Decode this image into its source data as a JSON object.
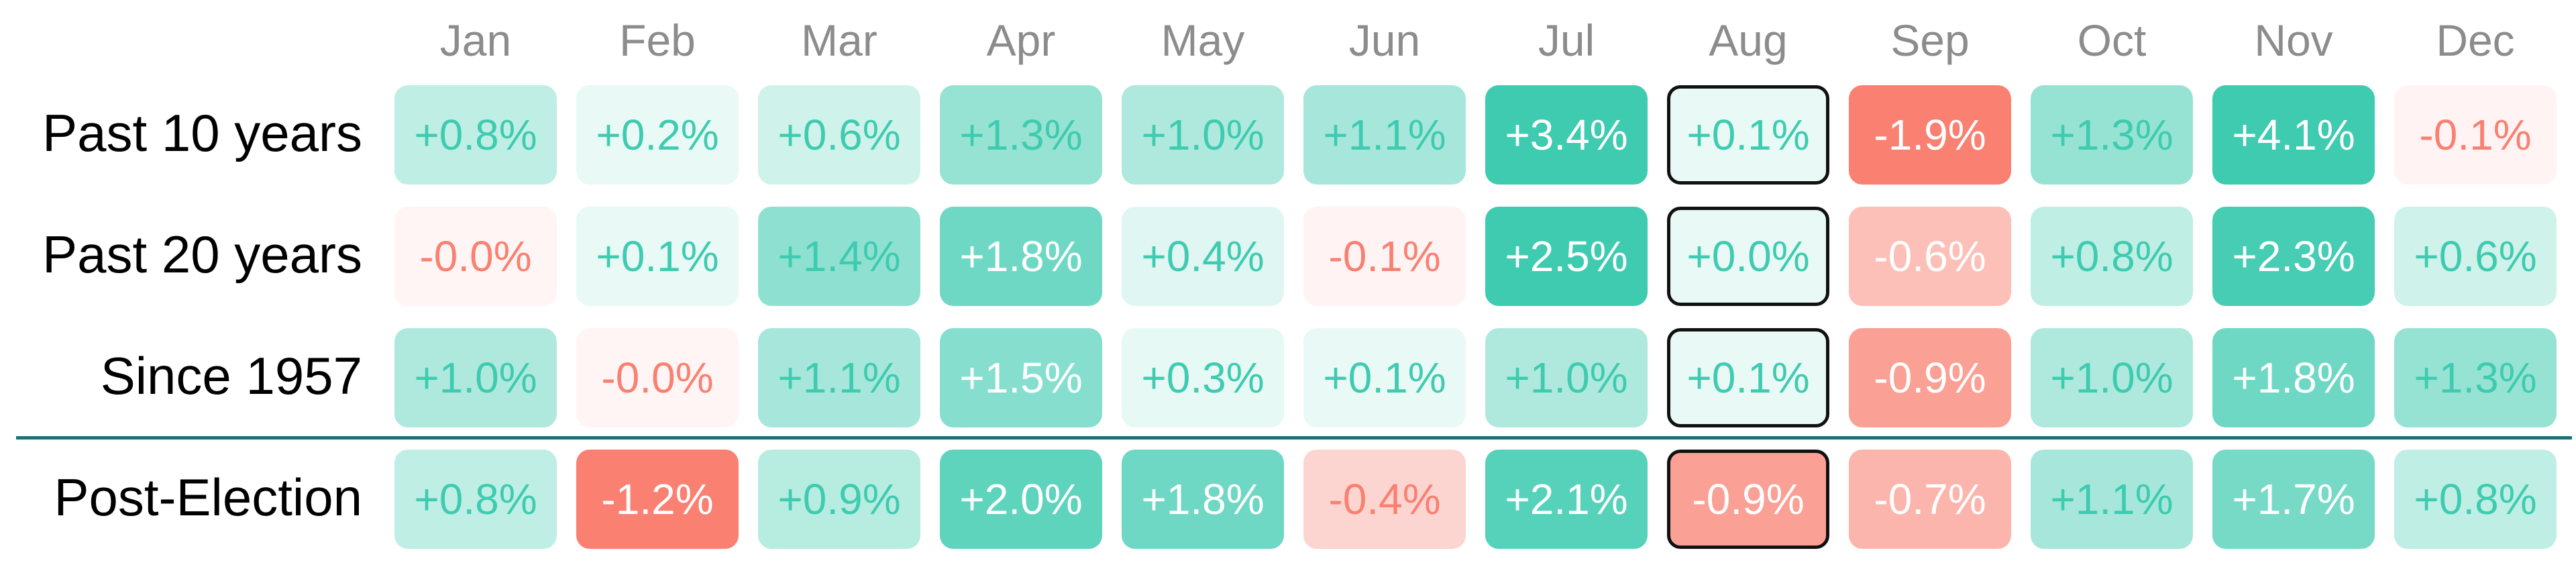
{
  "chart_data": {
    "type": "table",
    "title": "",
    "columns": [
      "Jan",
      "Feb",
      "Mar",
      "Apr",
      "May",
      "Jun",
      "Jul",
      "Aug",
      "Sep",
      "Oct",
      "Nov",
      "Dec"
    ],
    "rows": [
      {
        "label": "Past 10 years",
        "values": [
          0.8,
          0.2,
          0.6,
          1.3,
          1.0,
          1.1,
          3.4,
          0.1,
          -1.9,
          1.3,
          4.1,
          -0.1
        ],
        "display": [
          "+0.8%",
          "+0.2%",
          "+0.6%",
          "+1.3%",
          "+1.0%",
          "+1.1%",
          "+3.4%",
          "+0.1%",
          "-1.9%",
          "+1.3%",
          "+4.1%",
          "-0.1%"
        ]
      },
      {
        "label": "Past 20 years",
        "values": [
          -0.0,
          0.1,
          1.4,
          1.8,
          0.4,
          -0.1,
          2.5,
          0.0,
          -0.6,
          0.8,
          2.3,
          0.6
        ],
        "display": [
          "-0.0%",
          "+0.1%",
          "+1.4%",
          "+1.8%",
          "+0.4%",
          "-0.1%",
          "+2.5%",
          "+0.0%",
          "-0.6%",
          "+0.8%",
          "+2.3%",
          "+0.6%"
        ]
      },
      {
        "label": "Since 1957",
        "values": [
          1.0,
          -0.0,
          1.1,
          1.5,
          0.3,
          0.1,
          1.0,
          0.1,
          -0.9,
          1.0,
          1.8,
          1.3
        ],
        "display": [
          "+1.0%",
          "-0.0%",
          "+1.1%",
          "+1.5%",
          "+0.3%",
          "+0.1%",
          "+1.0%",
          "+0.1%",
          "-0.9%",
          "+1.0%",
          "+1.8%",
          "+1.3%"
        ]
      },
      {
        "label": "Post-Election",
        "values": [
          0.8,
          -1.2,
          0.9,
          2.0,
          1.8,
          -0.4,
          2.1,
          -0.9,
          -0.7,
          1.1,
          1.7,
          0.8
        ],
        "display": [
          "+0.8%",
          "-1.2%",
          "+0.9%",
          "+2.0%",
          "+1.8%",
          "-0.4%",
          "+2.1%",
          "-0.9%",
          "-0.7%",
          "+1.1%",
          "+1.7%",
          "+0.8%"
        ]
      }
    ],
    "highlighted_column": "Aug",
    "colors": {
      "positive": "#3ecbb0",
      "negative": "#fa8072",
      "divider": "#1f6f78",
      "header_text": "#8c8c8c",
      "row_label_text": "#000000",
      "highlight_border": "#111111"
    }
  }
}
